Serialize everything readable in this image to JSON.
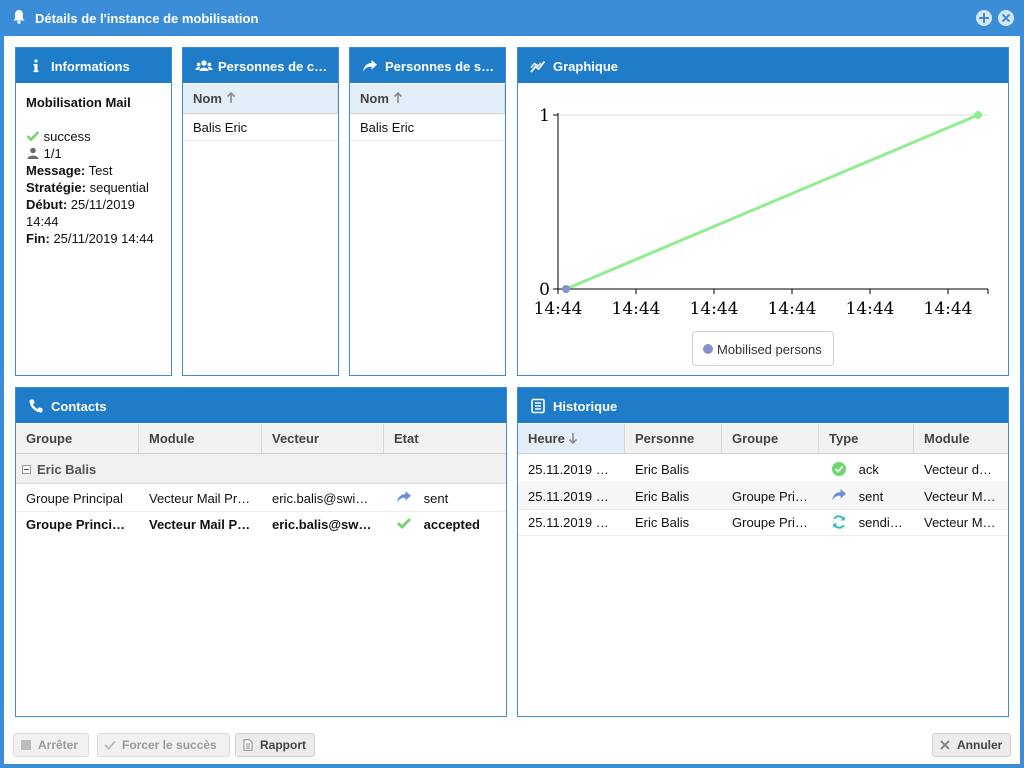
{
  "window": {
    "title": "Détails de l'instance de mobilisation",
    "accent": "#1f7cc9"
  },
  "info_panel": {
    "title": "Informations",
    "name": "Mobilisation Mail",
    "status": "success",
    "count": "1/1",
    "message_label": "Message:",
    "message_value": "Test",
    "strategy_label": "Stratégie:",
    "strategy_value": "sequential",
    "start_label": "Début:",
    "start_value": "25/11/2019 14:44",
    "end_label": "Fin:",
    "end_value": "25/11/2019 14:44"
  },
  "contacts_persons_panel": {
    "title": "Personnes de contact",
    "column": "Nom",
    "rows": [
      "Balis Eric"
    ]
  },
  "success_persons_panel": {
    "title": "Personnes de succès",
    "column": "Nom",
    "rows": [
      "Balis Eric"
    ]
  },
  "graph_panel": {
    "title": "Graphique",
    "legend": "Mobilised persons"
  },
  "chart_data": {
    "type": "line",
    "x_tick_labels": [
      "14:44",
      "14:44",
      "14:44",
      "14:44",
      "14:44",
      "14:44"
    ],
    "y_tick_labels": [
      "0",
      "1"
    ],
    "ylim": [
      0,
      1
    ],
    "series": [
      {
        "name": "Mobilised persons",
        "line_color": "#90ee90",
        "marker_color": "#8493c9",
        "x": [
          0,
          1
        ],
        "values": [
          0,
          1
        ]
      }
    ]
  },
  "contacts_panel": {
    "title": "Contacts",
    "columns": [
      "Groupe",
      "Module",
      "Vecteur",
      "Etat"
    ],
    "group_name": "Eric Balis",
    "rows": [
      {
        "groupe": "Groupe Principal",
        "module": "Vecteur Mail Pr…",
        "vecteur": "eric.balis@swi…",
        "etat": "sent",
        "etat_icon": "share-arrow-icon",
        "bold": false
      },
      {
        "groupe": "Groupe Princi…",
        "module": "Vecteur Mail P…",
        "vecteur": "eric.balis@sw…",
        "etat": "accepted",
        "etat_icon": "check-icon",
        "bold": true
      }
    ]
  },
  "history_panel": {
    "title": "Historique",
    "columns": [
      "Heure",
      "Personne",
      "Groupe",
      "Type",
      "Module"
    ],
    "rows": [
      {
        "heure": "25.11.2019 …",
        "personne": "Eric Balis",
        "groupe": "",
        "type": "ack",
        "type_icon": "check-circle-icon",
        "module": "Vecteur d…"
      },
      {
        "heure": "25.11.2019 …",
        "personne": "Eric Balis",
        "groupe": "Groupe Pri…",
        "type": "sent",
        "type_icon": "share-arrow-icon",
        "module": "Vecteur M…"
      },
      {
        "heure": "25.11.2019 …",
        "personne": "Eric Balis",
        "groupe": "Groupe Pri…",
        "type": "sendi…",
        "type_icon": "refresh-icon",
        "module": "Vecteur M…"
      }
    ]
  },
  "footer": {
    "stop_label": "Arrêter",
    "force_label": "Forcer le succès",
    "report_label": "Rapport",
    "cancel_label": "Annuler"
  }
}
